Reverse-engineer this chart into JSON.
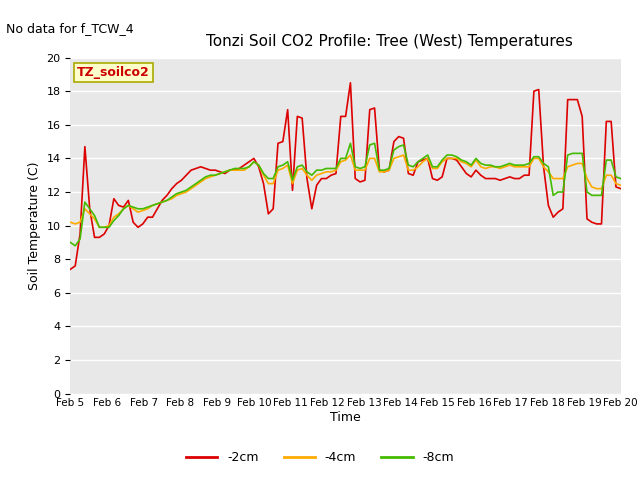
{
  "title": "Tonzi Soil CO2 Profile: Tree (West) Temperatures",
  "subtitle": "No data for f_TCW_4",
  "ylabel": "Soil Temperature (C)",
  "xlabel": "Time",
  "annotation": "TZ_soilco2",
  "ylim": [
    0,
    20
  ],
  "bg_color": "#e8e8e8",
  "fig_color": "#ffffff",
  "xtick_labels": [
    "Feb 5",
    "Feb 6",
    "Feb 7",
    "Feb 8",
    "Feb 9",
    "Feb 10",
    "Feb 11",
    "Feb 12",
    "Feb 13",
    "Feb 14",
    "Feb 15",
    "Feb 16",
    "Feb 17",
    "Feb 18",
    "Feb 19",
    "Feb 20"
  ],
  "legend_labels": [
    "-2cm",
    "-4cm",
    "-8cm"
  ],
  "line_colors": [
    "#dd0000",
    "#ffaa00",
    "#44bb00"
  ],
  "series_2cm": [
    7.4,
    7.6,
    9.5,
    14.7,
    11.0,
    9.3,
    9.3,
    9.5,
    10.0,
    11.6,
    11.2,
    11.1,
    11.5,
    10.2,
    9.9,
    10.1,
    10.5,
    10.5,
    11.0,
    11.5,
    11.8,
    12.2,
    12.5,
    12.7,
    13.0,
    13.3,
    13.4,
    13.5,
    13.4,
    13.3,
    13.3,
    13.2,
    13.1,
    13.3,
    13.3,
    13.4,
    13.6,
    13.8,
    14.0,
    13.5,
    12.5,
    10.7,
    11.0,
    14.9,
    15.0,
    16.9,
    12.1,
    16.5,
    16.4,
    12.8,
    11.0,
    12.4,
    12.8,
    12.8,
    13.0,
    13.1,
    16.5,
    16.5,
    18.5,
    12.8,
    12.6,
    12.7,
    16.9,
    17.0,
    13.3,
    13.2,
    13.3,
    15.0,
    15.3,
    15.2,
    13.1,
    13.0,
    13.8,
    13.9,
    14.0,
    12.8,
    12.7,
    12.9,
    14.0,
    14.0,
    13.9,
    13.5,
    13.1,
    12.9,
    13.3,
    13.0,
    12.8,
    12.8,
    12.8,
    12.7,
    12.8,
    12.9,
    12.8,
    12.8,
    13.0,
    13.0,
    18.0,
    18.1,
    13.5,
    11.2,
    10.5,
    10.8,
    11.0,
    17.5,
    17.5,
    17.5,
    16.5,
    10.4,
    10.2,
    10.1,
    10.1,
    16.2,
    16.2,
    12.3,
    12.2
  ],
  "series_4cm": [
    10.2,
    10.1,
    10.2,
    11.0,
    10.7,
    10.4,
    9.9,
    9.9,
    10.0,
    10.5,
    10.7,
    11.0,
    11.2,
    11.0,
    10.8,
    10.9,
    11.0,
    11.2,
    11.3,
    11.4,
    11.5,
    11.6,
    11.8,
    11.9,
    12.0,
    12.2,
    12.4,
    12.6,
    12.8,
    12.9,
    13.0,
    13.1,
    13.2,
    13.3,
    13.3,
    13.3,
    13.3,
    13.5,
    13.8,
    13.6,
    13.0,
    12.5,
    12.5,
    13.3,
    13.4,
    13.6,
    12.5,
    13.3,
    13.4,
    13.0,
    12.7,
    13.0,
    13.1,
    13.2,
    13.2,
    13.3,
    13.8,
    13.9,
    14.2,
    13.3,
    13.3,
    13.3,
    14.0,
    14.0,
    13.2,
    13.2,
    13.3,
    14.0,
    14.1,
    14.2,
    13.3,
    13.3,
    13.5,
    13.8,
    14.0,
    13.4,
    13.4,
    13.8,
    14.0,
    14.0,
    14.0,
    13.8,
    13.7,
    13.5,
    13.9,
    13.5,
    13.4,
    13.5,
    13.5,
    13.4,
    13.5,
    13.6,
    13.5,
    13.5,
    13.5,
    13.5,
    14.0,
    14.0,
    13.5,
    13.2,
    12.8,
    12.8,
    12.8,
    13.5,
    13.6,
    13.7,
    13.7,
    12.8,
    12.3,
    12.2,
    12.2,
    13.0,
    13.0,
    12.5,
    12.4
  ],
  "series_8cm": [
    9.0,
    8.8,
    9.2,
    11.4,
    11.0,
    10.6,
    9.9,
    9.9,
    9.9,
    10.3,
    10.6,
    11.0,
    11.2,
    11.1,
    11.0,
    11.0,
    11.1,
    11.2,
    11.3,
    11.4,
    11.5,
    11.7,
    11.9,
    12.0,
    12.1,
    12.3,
    12.5,
    12.7,
    12.9,
    13.0,
    13.0,
    13.1,
    13.2,
    13.3,
    13.4,
    13.4,
    13.4,
    13.5,
    13.8,
    13.6,
    13.1,
    12.8,
    12.8,
    13.5,
    13.6,
    13.8,
    12.7,
    13.5,
    13.6,
    13.2,
    13.0,
    13.3,
    13.3,
    13.4,
    13.4,
    13.4,
    14.0,
    14.0,
    14.9,
    13.5,
    13.4,
    13.5,
    14.8,
    14.9,
    13.3,
    13.3,
    13.4,
    14.5,
    14.7,
    14.8,
    13.6,
    13.5,
    13.8,
    14.0,
    14.2,
    13.5,
    13.5,
    13.9,
    14.2,
    14.2,
    14.1,
    13.9,
    13.8,
    13.6,
    14.0,
    13.7,
    13.6,
    13.6,
    13.5,
    13.5,
    13.6,
    13.7,
    13.6,
    13.6,
    13.6,
    13.7,
    14.1,
    14.1,
    13.7,
    13.5,
    11.8,
    12.0,
    12.0,
    14.2,
    14.3,
    14.3,
    14.3,
    12.0,
    11.8,
    11.8,
    11.8,
    13.9,
    13.9,
    12.9,
    12.8
  ]
}
